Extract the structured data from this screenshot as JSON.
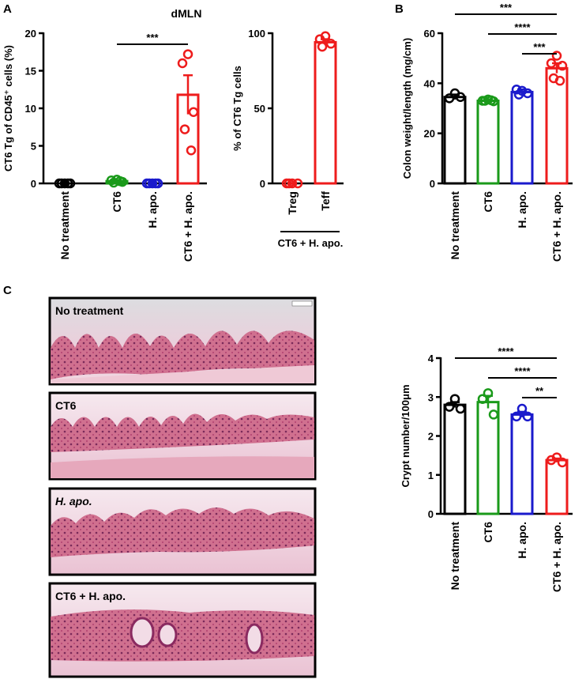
{
  "panel_labels": [
    "A",
    "B",
    "C"
  ],
  "panel_a_title": "dMLN",
  "micrographs": [
    {
      "label": "No treatment"
    },
    {
      "label": "CT6"
    },
    {
      "label": "H. apo."
    },
    {
      "label": "CT6 + H. apo."
    }
  ],
  "chart_data": [
    {
      "type": "bar",
      "ylabel": "CT6 Tg of CD45⁺ cells (%)",
      "categories": [
        "No treatment",
        "CT6",
        "H. apo.",
        "CT6 + H. apo."
      ],
      "colors": [
        "#000000",
        "#1a9a1a",
        "#1a1acc",
        "#ee1c1c"
      ],
      "values": [
        0,
        0.3,
        0,
        11.8
      ],
      "errors": [
        0,
        0.1,
        0,
        2.6
      ],
      "points": [
        [
          0,
          0,
          0,
          0,
          0
        ],
        [
          0.5,
          0.4,
          0.2,
          0.1,
          0.3
        ],
        [
          0,
          0,
          0,
          0,
          0
        ],
        [
          17.2,
          16,
          9.5,
          7.2,
          4.4
        ]
      ],
      "ylim": [
        0,
        20
      ],
      "yticks": [
        0,
        5,
        10,
        15,
        20
      ],
      "annotations": [
        {
          "text": "***",
          "between": [
            1,
            3
          ]
        }
      ]
    },
    {
      "type": "bar",
      "ylabel": "% of CT6 Tg cells",
      "categories": [
        "Treg",
        "Teff"
      ],
      "colors": [
        "#ee1c1c",
        "#ee1c1c"
      ],
      "values": [
        0,
        94
      ],
      "errors": [
        0,
        2
      ],
      "points": [
        [
          0,
          0,
          0,
          0
        ],
        [
          98,
          96,
          93,
          91
        ]
      ],
      "ylim": [
        0,
        100
      ],
      "yticks": [
        0,
        50,
        100
      ],
      "group_label": "CT6 + H. apo.",
      "annotations": []
    },
    {
      "type": "bar",
      "ylabel": "Colon weight/length (mg/cm)",
      "categories": [
        "No treatment",
        "CT6",
        "H. apo.",
        "CT6 + H. apo."
      ],
      "colors": [
        "#000000",
        "#1a9a1a",
        "#1a1acc",
        "#ee1c1c"
      ],
      "values": [
        34.5,
        33,
        36.5,
        46
      ],
      "errors": [
        1,
        0.4,
        1,
        2
      ],
      "points": [
        [
          36,
          34,
          34.5
        ],
        [
          33.5,
          33,
          32.8,
          33,
          33.2
        ],
        [
          37,
          37.5,
          36,
          35.5
        ],
        [
          51,
          48,
          47,
          42,
          41
        ]
      ],
      "ylim": [
        0,
        60
      ],
      "yticks": [
        0,
        20,
        40,
        60
      ],
      "annotations": [
        {
          "text": "***",
          "between": [
            0,
            3
          ]
        },
        {
          "text": "****",
          "between": [
            1,
            3
          ]
        },
        {
          "text": "***",
          "between": [
            2,
            3
          ]
        }
      ]
    },
    {
      "type": "bar",
      "ylabel": "Crypt number/100μm",
      "categories": [
        "No treatment",
        "CT6",
        "H. apo.",
        "CT6 + H. apo."
      ],
      "colors": [
        "#000000",
        "#1a9a1a",
        "#1a1acc",
        "#ee1c1c"
      ],
      "values": [
        2.8,
        2.87,
        2.55,
        1.38
      ],
      "errors": [
        0.07,
        0.16,
        0.07,
        0.04
      ],
      "points": [
        [
          2.95,
          2.75,
          2.7
        ],
        [
          3.1,
          2.95,
          2.55
        ],
        [
          2.7,
          2.5,
          2.5
        ],
        [
          1.45,
          1.38,
          1.32
        ]
      ],
      "ylim": [
        0,
        4
      ],
      "yticks": [
        0,
        1,
        2,
        3,
        4
      ],
      "annotations": [
        {
          "text": "****",
          "between": [
            0,
            3
          ]
        },
        {
          "text": "****",
          "between": [
            1,
            3
          ]
        },
        {
          "text": "**",
          "between": [
            2,
            3
          ]
        }
      ]
    }
  ]
}
